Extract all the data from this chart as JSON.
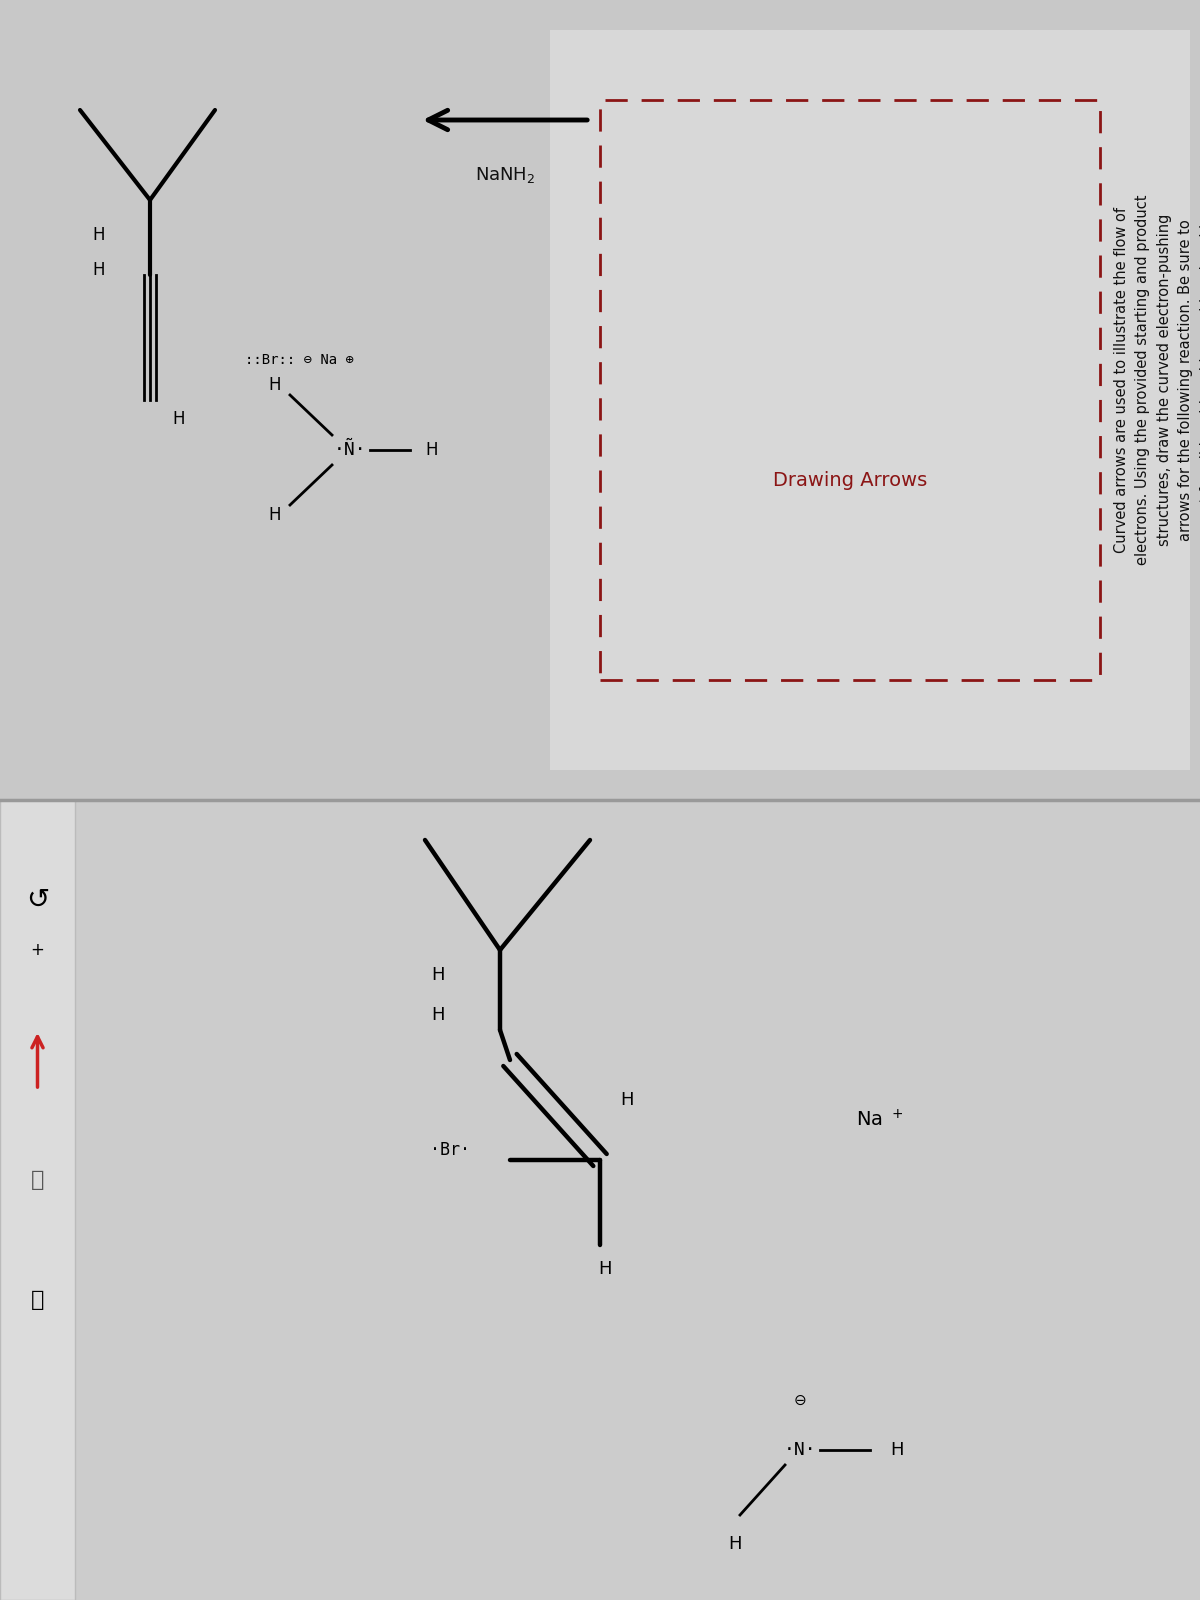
{
  "title_text": "Curved arrows are used to illustrate the flow of\nelectrons. Using the provided starting and product\nstructures, draw the curved electron-pushing\narrows for the following reaction. Be sure to\naccount for all bond-breaking and bond-making\nsteps.",
  "drawing_arrows_label": "Drawing Arrows",
  "reagent_label": "NaNH₂",
  "bg_top": "#c8c8c8",
  "bg_bottom": "#c0c0c0",
  "text_color": "#111111",
  "dashed_box_color": "#8b1515",
  "drawing_arrows_color": "#8b1515",
  "divider_color": "#999999",
  "white_panel_color": "#e8e8e8"
}
